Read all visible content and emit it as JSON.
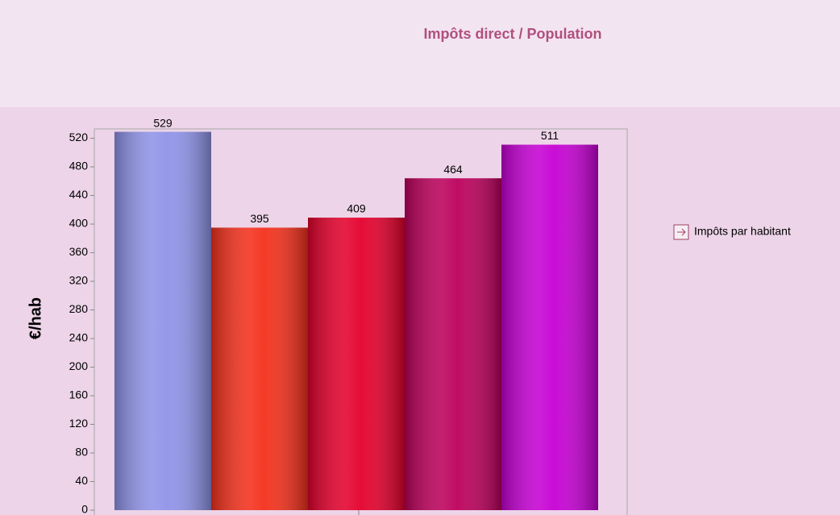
{
  "chart_data": {
    "type": "bar",
    "title": "Impôts direct / Population",
    "y_label": "€/hab",
    "categories": [
      null,
      null,
      null,
      null,
      null
    ],
    "series": [
      {
        "name": "Impôts par habitant",
        "colors": [
          "#8f93e8",
          "#f4301c",
          "#e4002c",
          "#bc005c",
          "#c600d4"
        ],
        "values": [
          529,
          395,
          409,
          464,
          511
        ]
      }
    ],
    "ylim": [
      0,
      533
    ],
    "yticks": [
      0,
      40,
      80,
      120,
      160,
      200,
      240,
      280,
      320,
      360,
      400,
      440,
      480,
      520
    ],
    "legend": "right"
  }
}
